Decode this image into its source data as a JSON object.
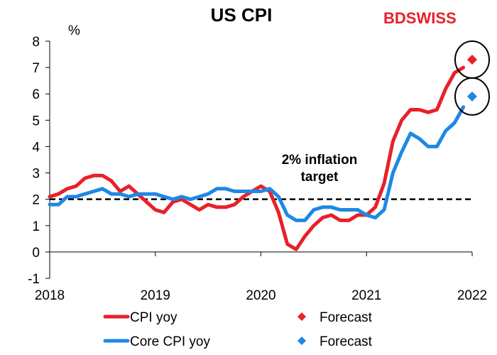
{
  "logo": {
    "part1": "BD",
    "part2": "SWISS",
    "color1": "#e8202a",
    "color2": "#e8202a"
  },
  "chart_data": {
    "type": "line",
    "title": "US CPI",
    "ylabel": "%",
    "xlabel": "",
    "ylim": [
      -1,
      8
    ],
    "yticks": [
      -1,
      0,
      1,
      2,
      3,
      4,
      5,
      6,
      7,
      8
    ],
    "xlim": [
      2018.0,
      2022.0
    ],
    "xticks": [
      2018,
      2019,
      2020,
      2021,
      2022
    ],
    "grid": false,
    "legend_position": "bottom",
    "reference_line": {
      "value": 2,
      "style": "dashed",
      "color": "#000000"
    },
    "annotation": {
      "lines": [
        "2% inflation",
        "target"
      ]
    },
    "series": [
      {
        "name": "CPI yoy",
        "color": "#e8202a",
        "x_start": "2018-01",
        "step": "month",
        "values": [
          2.1,
          2.2,
          2.4,
          2.5,
          2.8,
          2.9,
          2.9,
          2.7,
          2.3,
          2.5,
          2.2,
          1.9,
          1.6,
          1.5,
          1.9,
          2.0,
          1.8,
          1.6,
          1.8,
          1.7,
          1.7,
          1.8,
          2.1,
          2.3,
          2.5,
          2.3,
          1.5,
          0.3,
          0.1,
          0.6,
          1.0,
          1.3,
          1.4,
          1.2,
          1.2,
          1.4,
          1.4,
          1.7,
          2.6,
          4.2,
          5.0,
          5.4,
          5.4,
          5.3,
          5.4,
          6.2,
          6.8,
          7.0
        ]
      },
      {
        "name": "Core CPI yoy",
        "color": "#1e88e5",
        "x_start": "2018-01",
        "step": "month",
        "values": [
          1.8,
          1.8,
          2.1,
          2.1,
          2.2,
          2.3,
          2.4,
          2.2,
          2.2,
          2.1,
          2.2,
          2.2,
          2.2,
          2.1,
          2.0,
          2.1,
          2.0,
          2.1,
          2.2,
          2.4,
          2.4,
          2.3,
          2.3,
          2.3,
          2.3,
          2.4,
          2.1,
          1.4,
          1.2,
          1.2,
          1.6,
          1.7,
          1.7,
          1.6,
          1.6,
          1.6,
          1.4,
          1.3,
          1.6,
          3.0,
          3.8,
          4.5,
          4.3,
          4.0,
          4.0,
          4.6,
          4.9,
          5.5
        ]
      }
    ],
    "forecasts": [
      {
        "name": "Forecast",
        "series": "CPI yoy",
        "x": "2022-01",
        "value": 7.3,
        "color": "#e8202a",
        "marker": "diamond",
        "circled": true
      },
      {
        "name": "Forecast",
        "series": "Core CPI yoy",
        "x": "2022-01",
        "value": 5.9,
        "color": "#1e88e5",
        "marker": "diamond",
        "circled": true
      }
    ]
  }
}
